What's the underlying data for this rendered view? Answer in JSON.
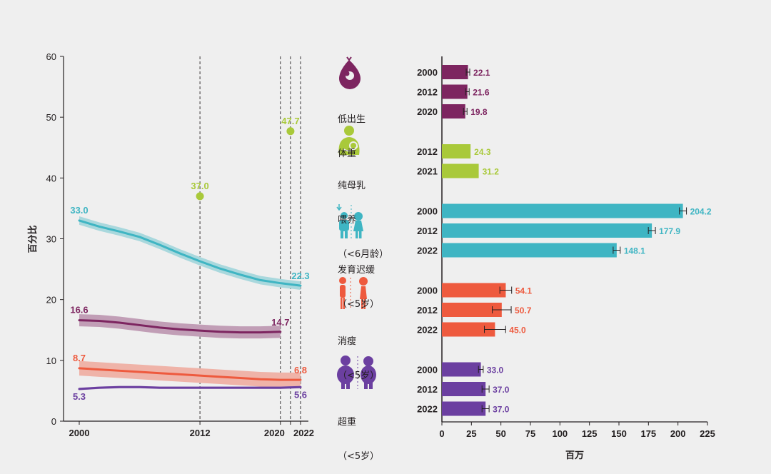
{
  "chart_data": [
    {
      "type": "line",
      "ylabel": "百分比",
      "ylim": [
        0,
        60
      ],
      "yticks": [
        0,
        10,
        20,
        30,
        40,
        50,
        60
      ],
      "xlim": [
        1999,
        2023
      ],
      "xticks": [
        2000,
        2012,
        2020,
        2022
      ],
      "reference_years": [
        2012,
        2020,
        2021,
        2022
      ],
      "series": [
        {
          "name": "发育迟缓",
          "color": "#3fb5c3",
          "x": [
            2000,
            2002,
            2004,
            2006,
            2008,
            2010,
            2012,
            2014,
            2016,
            2018,
            2020,
            2022
          ],
          "y": [
            33.0,
            32.0,
            31.2,
            30.3,
            29.0,
            27.6,
            26.3,
            25.1,
            24.1,
            23.2,
            22.7,
            22.3
          ],
          "band": 0.7,
          "start_label": "33.0",
          "end_label": "22.3"
        },
        {
          "name": "消瘦",
          "color": "#7d2560",
          "x": [
            2000,
            2002,
            2004,
            2006,
            2008,
            2010,
            2012,
            2014,
            2016,
            2018,
            2020
          ],
          "y": [
            16.6,
            16.5,
            16.2,
            15.8,
            15.4,
            15.1,
            14.9,
            14.7,
            14.6,
            14.6,
            14.7
          ],
          "band": 1.0,
          "start_label": "16.6",
          "end_label": "14.7"
        },
        {
          "name": "超重",
          "color": "#ee5a3e",
          "x": [
            2000,
            2002,
            2004,
            2006,
            2008,
            2010,
            2012,
            2014,
            2016,
            2018,
            2020,
            2022
          ],
          "y": [
            8.7,
            8.5,
            8.3,
            8.1,
            7.9,
            7.7,
            7.5,
            7.3,
            7.1,
            6.9,
            6.8,
            6.8
          ],
          "band": 1.2,
          "start_label": "8.7",
          "end_label": "6.8"
        },
        {
          "name": "体重",
          "color": "#6b3fa0",
          "x": [
            2000,
            2002,
            2004,
            2006,
            2008,
            2010,
            2012,
            2014,
            2016,
            2018,
            2020,
            2022
          ],
          "y": [
            5.3,
            5.5,
            5.6,
            5.6,
            5.5,
            5.5,
            5.5,
            5.5,
            5.5,
            5.5,
            5.5,
            5.6
          ],
          "band": 0.2,
          "start_label": "5.3",
          "end_label": "5.6"
        }
      ],
      "points": [
        {
          "name": "纯母乳喂养",
          "color": "#a9c93a",
          "x": 2012,
          "y": 37.0,
          "label": "37.0"
        },
        {
          "name": "纯母乳喂养",
          "color": "#a9c93a",
          "x": 2021,
          "y": 47.7,
          "label": "47.7"
        }
      ]
    },
    {
      "type": "bar",
      "orientation": "horizontal",
      "xlabel": "百万",
      "xlim": [
        0,
        225
      ],
      "xticks": [
        0,
        25,
        50,
        75,
        100,
        125,
        150,
        175,
        200,
        225
      ],
      "groups": [
        {
          "name": "低出生体重",
          "color": "#7d2560",
          "categories": [
            "2000",
            "2012",
            "2020"
          ],
          "values": [
            22.1,
            21.6,
            19.8
          ],
          "errors": [
            1.5,
            1.5,
            1.5
          ]
        },
        {
          "name": "纯母乳喂养",
          "color": "#a9c93a",
          "categories": [
            "2012",
            "2021"
          ],
          "values": [
            24.3,
            31.2
          ],
          "errors": [
            0,
            0
          ]
        },
        {
          "name": "发育迟缓",
          "color": "#3fb5c3",
          "categories": [
            "2000",
            "2012",
            "2022"
          ],
          "values": [
            204.2,
            177.9,
            148.1
          ],
          "errors": [
            3,
            3,
            3
          ]
        },
        {
          "name": "消瘦",
          "color": "#ee5a3e",
          "categories": [
            "2000",
            "2012",
            "2022"
          ],
          "values": [
            54.1,
            50.7,
            45.0
          ],
          "errors": [
            5,
            8,
            9
          ]
        },
        {
          "name": "超重",
          "color": "#6b3fa0",
          "categories": [
            "2000",
            "2012",
            "2022"
          ],
          "values": [
            33.0,
            37.0,
            37.0
          ],
          "errors": [
            2,
            3,
            3
          ]
        }
      ]
    }
  ],
  "icons": [
    {
      "name": "low-birth-weight-icon",
      "label_lines": [
        "低出生",
        "体重"
      ],
      "color": "#7d2560"
    },
    {
      "name": "breastfeeding-icon",
      "label_lines": [
        "纯母乳",
        "喂养",
        "（<6月龄）"
      ],
      "color": "#a9c93a"
    },
    {
      "name": "stunting-icon",
      "label_lines": [
        "发育迟缓",
        "（<5岁）"
      ],
      "color": "#3fb5c3"
    },
    {
      "name": "wasting-icon",
      "label_lines": [
        "消瘦",
        "（<5岁）"
      ],
      "color": "#ee5a3e"
    },
    {
      "name": "overweight-icon",
      "label_lines": [
        "超重",
        "（<5岁）"
      ],
      "color": "#6b3fa0"
    }
  ]
}
